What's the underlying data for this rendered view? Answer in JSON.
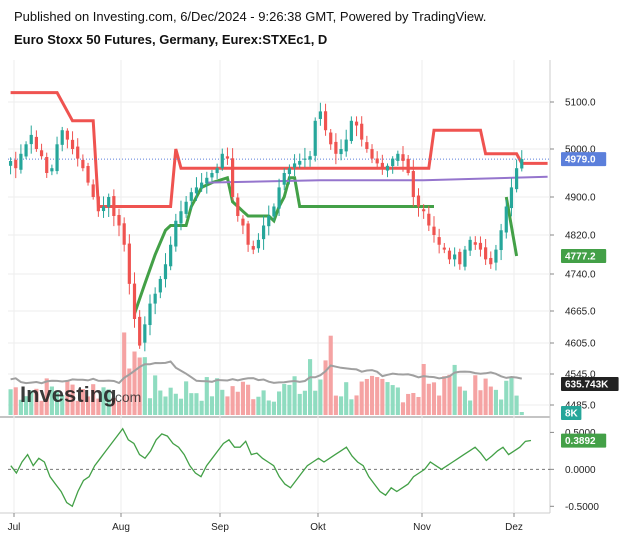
{
  "header": {
    "published": "Published on Investing.com, 6/Dec/2024 - 9:26:38 GMT, Powered by TradingView.",
    "title": "Euro Stoxx 50 Futures, Germany, Eurex:STXEc1, D"
  },
  "watermark": {
    "brand_main": "Investing",
    "brand_suffix": ".com"
  },
  "colors": {
    "up": "#26a69a",
    "down": "#ef5350",
    "volume_up": "#8fdcc0",
    "volume_down": "#f5a3a3",
    "band_upper": "#ef5350",
    "band_lower": "#43a047",
    "ma_purple": "#9575cd",
    "volume_ma": "#a0a0a0",
    "oscillator": "#43a047",
    "last_price": "#5b7fdb",
    "grid": "#eeeeee"
  },
  "chart_data": [
    {
      "type": "candlestick",
      "name": "price",
      "price_axis_ticks": [
        "5100.0",
        "5000.0",
        "4900.0",
        "4820.0",
        "4740.0",
        "4665.0",
        "4605.0",
        "4545.0",
        "4485.0"
      ],
      "ylim": [
        4440,
        5150
      ],
      "x_labels": [
        "Jul",
        "Aug",
        "Sep",
        "Okt",
        "Nov",
        "Dez"
      ],
      "badges": {
        "last_price": "4979.0",
        "lower_band": "4777.2",
        "volume_ma": "635.743K",
        "volume": "8K"
      },
      "approx_close_series": [
        4975,
        4960,
        4990,
        5010,
        5030,
        5000,
        4985,
        4950,
        4960,
        5010,
        5040,
        5020,
        5000,
        4980,
        4960,
        4930,
        4900,
        4870,
        4880,
        4900,
        4860,
        4840,
        4800,
        4720,
        4650,
        4600,
        4640,
        4680,
        4700,
        4730,
        4760,
        4800,
        4850,
        4870,
        4890,
        4910,
        4920,
        4930,
        4940,
        4950,
        4960,
        4990,
        4980,
        4900,
        4860,
        4840,
        4800,
        4790,
        4810,
        4840,
        4860,
        4880,
        4920,
        4950,
        4960,
        4970,
        4975,
        4980,
        4985,
        5060,
        5080,
        5040,
        5010,
        4990,
        5000,
        5020,
        5060,
        5050,
        5020,
        5000,
        4980,
        4970,
        4960,
        4965,
        4980,
        4990,
        4975,
        4950,
        4900,
        4880,
        4870,
        4840,
        4820,
        4800,
        4790,
        4770,
        4780,
        4760,
        4790,
        4810,
        4800,
        4790,
        4770,
        4760,
        4790,
        4830,
        4880,
        4920,
        4960,
        4979
      ],
      "upper_band_steps": [
        [
          0,
          5120
        ],
        [
          9,
          5120
        ],
        [
          12,
          5060
        ],
        [
          16,
          5060
        ],
        [
          17,
          4880
        ],
        [
          31,
          4880
        ],
        [
          32,
          5000
        ],
        [
          33,
          4960
        ],
        [
          58,
          4960
        ],
        [
          59,
          4960
        ],
        [
          60,
          4960
        ],
        [
          72,
          4960
        ],
        [
          81,
          4960
        ],
        [
          82,
          5040
        ],
        [
          91,
          5040
        ],
        [
          92,
          4990
        ],
        [
          98,
          4990
        ],
        [
          99,
          4970
        ],
        [
          104,
          4970
        ]
      ],
      "lower_band_steps": [
        [
          24,
          4660
        ],
        [
          26,
          4720
        ],
        [
          28,
          4780
        ],
        [
          30,
          4830
        ],
        [
          31,
          4840
        ],
        [
          34,
          4840
        ],
        [
          35,
          4880
        ],
        [
          37,
          4920
        ],
        [
          39,
          4930
        ],
        [
          42,
          4940
        ],
        [
          43,
          4890
        ],
        [
          44,
          4880
        ],
        [
          45,
          4870
        ],
        [
          46,
          4860
        ],
        [
          50,
          4860
        ],
        [
          51,
          4850
        ],
        [
          52,
          4880
        ],
        [
          53,
          4900
        ],
        [
          54,
          4940
        ],
        [
          55,
          4940
        ],
        [
          56,
          4880
        ],
        [
          57,
          4880
        ],
        [
          81,
          4880
        ],
        [
          82,
          4880
        ]
      ],
      "ma_purple_series": [
        [
          38,
          4930
        ],
        [
          60,
          4935
        ],
        [
          80,
          4935
        ],
        [
          104,
          4942
        ]
      ]
    },
    {
      "type": "bar",
      "name": "volume",
      "ma_badge": "635.743K",
      "last_badge": "8K"
    },
    {
      "type": "line",
      "name": "oscillator",
      "ticks": [
        "0.5000",
        "0.0000",
        "-0.5000"
      ],
      "ylim": [
        -0.55,
        0.6
      ],
      "last_value": "0.3892",
      "approx_series": [
        0.05,
        -0.05,
        0.1,
        0.2,
        0.05,
        0.15,
        0.1,
        -0.1,
        -0.2,
        -0.3,
        -0.45,
        -0.5,
        -0.3,
        -0.15,
        -0.1,
        0.05,
        0.15,
        0.25,
        0.35,
        0.45,
        0.55,
        0.4,
        0.35,
        0.2,
        0.15,
        0.25,
        0.4,
        0.48,
        0.45,
        0.35,
        0.3,
        0.2,
        0.05,
        -0.05,
        -0.1,
        0.05,
        0.15,
        0.25,
        0.35,
        0.4,
        0.3,
        0.3,
        0.38,
        0.2,
        0.22,
        0.15,
        0.1,
        0.05,
        -0.1,
        -0.2,
        -0.25,
        -0.15,
        -0.05,
        0.05,
        0.1,
        0.15,
        0.1,
        0.15,
        0.2,
        0.25,
        0.3,
        0.18,
        0.1,
        0.05,
        -0.1,
        -0.2,
        -0.3,
        -0.35,
        -0.25,
        -0.3,
        -0.25,
        -0.2,
        -0.1,
        -0.05,
        0.0,
        0.1,
        0.05,
        0.0,
        0.05,
        0.1,
        0.15,
        0.2,
        0.25,
        0.3,
        0.22,
        0.12,
        0.18,
        0.25,
        0.3,
        0.2,
        0.25,
        0.3,
        0.38,
        0.39
      ]
    }
  ]
}
